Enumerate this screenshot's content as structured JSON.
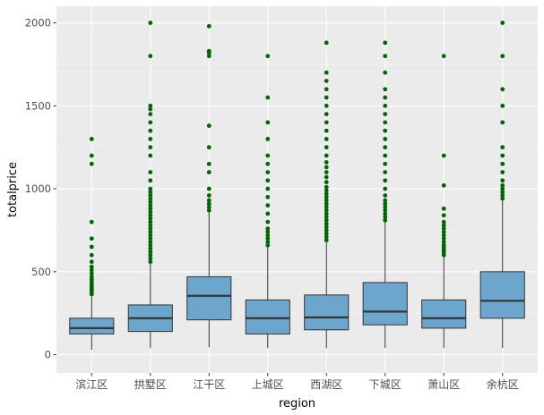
{
  "chart_data": {
    "type": "boxplot",
    "title": "",
    "xlabel": "region",
    "ylabel": "totalprice",
    "ylim": [
      -110,
      2100
    ],
    "yticks": [
      0,
      500,
      1000,
      1500,
      2000
    ],
    "grid": true,
    "legend": "none",
    "colors": {
      "panel": "#EBEBEB",
      "gridMajor": "#FFFFFF",
      "gridMinor": "#F5F5F5",
      "boxFill": "#6CA6CD",
      "boxStroke": "#333333",
      "outlier": "#006400",
      "axisText": "#4D4D4D",
      "axisTitle": "#000000"
    },
    "categories": [
      "滨江区",
      "拱墅区",
      "江干区",
      "上城区",
      "西湖区",
      "下城区",
      "萧山区",
      "余杭区"
    ],
    "boxes": [
      {
        "category": "滨江区",
        "lower": 30,
        "q1": 125,
        "median": 160,
        "q3": 220,
        "upper": 360,
        "outliers": [
          365,
          375,
          385,
          395,
          405,
          415,
          425,
          440,
          455,
          470,
          490,
          510,
          530,
          560,
          600,
          650,
          700,
          800,
          1150,
          1200,
          1300
        ]
      },
      {
        "category": "拱墅区",
        "lower": 40,
        "q1": 140,
        "median": 220,
        "q3": 300,
        "upper": 550,
        "outliers": [
          560,
          580,
          600,
          620,
          640,
          660,
          680,
          700,
          720,
          740,
          760,
          780,
          800,
          820,
          840,
          860,
          880,
          900,
          920,
          940,
          960,
          980,
          1000,
          1050,
          1100,
          1200,
          1250,
          1300,
          1350,
          1400,
          1450,
          1480,
          1500,
          1800,
          2000
        ]
      },
      {
        "category": "江干区",
        "lower": 45,
        "q1": 210,
        "median": 355,
        "q3": 470,
        "upper": 860,
        "outliers": [
          870,
          890,
          910,
          930,
          960,
          1000,
          1100,
          1150,
          1250,
          1380,
          1800,
          1820,
          1830,
          1980
        ]
      },
      {
        "category": "上城区",
        "lower": 40,
        "q1": 125,
        "median": 220,
        "q3": 330,
        "upper": 650,
        "outliers": [
          660,
          680,
          700,
          720,
          740,
          760,
          800,
          850,
          900,
          950,
          1000,
          1050,
          1100,
          1150,
          1200,
          1300,
          1400,
          1550,
          1800
        ]
      },
      {
        "category": "西湖区",
        "lower": 40,
        "q1": 150,
        "median": 225,
        "q3": 360,
        "upper": 680,
        "outliers": [
          690,
          710,
          730,
          750,
          770,
          790,
          810,
          830,
          850,
          870,
          890,
          910,
          930,
          950,
          970,
          990,
          1010,
          1040,
          1070,
          1100,
          1130,
          1160,
          1200,
          1250,
          1300,
          1350,
          1400,
          1450,
          1500,
          1550,
          1600,
          1650,
          1700,
          1880
        ]
      },
      {
        "category": "下城区",
        "lower": 40,
        "q1": 180,
        "median": 260,
        "q3": 435,
        "upper": 800,
        "outliers": [
          810,
          830,
          850,
          870,
          890,
          910,
          930,
          960,
          1000,
          1050,
          1100,
          1150,
          1200,
          1250,
          1300,
          1350,
          1400,
          1450,
          1500,
          1550,
          1600,
          1700,
          1800,
          1880
        ]
      },
      {
        "category": "萧山区",
        "lower": 40,
        "q1": 160,
        "median": 220,
        "q3": 330,
        "upper": 590,
        "outliers": [
          600,
          615,
          630,
          645,
          660,
          680,
          700,
          720,
          740,
          760,
          780,
          800,
          840,
          880,
          1020,
          1200,
          1800
        ]
      },
      {
        "category": "余杭区",
        "lower": 40,
        "q1": 220,
        "median": 325,
        "q3": 500,
        "upper": 925,
        "outliers": [
          940,
          960,
          980,
          1000,
          1020,
          1050,
          1100,
          1150,
          1200,
          1250,
          1400,
          1500,
          1600,
          1800,
          2000
        ]
      }
    ]
  }
}
